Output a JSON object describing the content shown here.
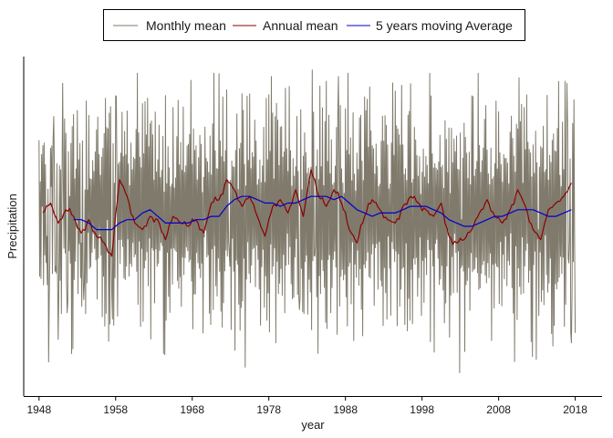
{
  "chart_data": {
    "type": "line",
    "title": "",
    "xlabel": "year",
    "ylabel": "Precipitation",
    "xlim": [
      1946,
      2021.5
    ],
    "ylim": [
      -0.02,
      1.0
    ],
    "x_ticks": [
      1948,
      1958,
      1968,
      1978,
      1988,
      1998,
      2008,
      2018
    ],
    "x_tick_labels": [
      "1948",
      "1958",
      "1968",
      "1978",
      "1988",
      "1998",
      "2008",
      "2018"
    ],
    "y_ticks_shown": false,
    "grid": false,
    "legend_position": "top-center",
    "x_range": [
      1948,
      2018
    ],
    "series": [
      {
        "name": "Monthly mean",
        "color": "#7f7a6b",
        "key_points_note": "",
        "x": [
          1948.1,
          1948.4,
          1948.7,
          1949.0,
          1949.3,
          1949.6,
          1949.9,
          1950.2,
          1950.5,
          1950.8,
          1951.1,
          1951.4,
          1951.7,
          1952.0,
          1952.3,
          1952.6,
          1952.9,
          1953.2,
          1953.5,
          1953.8,
          1956.6,
          1956.9,
          1957.2,
          1957.5,
          1957.8,
          1958.1,
          1958.4,
          1958.7,
          1972.5,
          1972.8,
          1973.1,
          1978.3,
          1978.6,
          1978.9,
          1981.7,
          1982.0,
          1982.3,
          1983.7,
          1984.0,
          1984.3,
          1987.1,
          1987.4,
          1987.7,
          2002.9,
          2003.2,
          2003.5,
          2012.9,
          2013.2,
          2013.5,
          2016.9,
          2017.2,
          2017.5,
          2017.8,
          2018.0
        ],
        "y": [
          0.34,
          0.55,
          0.74,
          0.46,
          0.28,
          0.61,
          0.82,
          0.37,
          0.15,
          0.66,
          0.92,
          0.41,
          0.23,
          0.58,
          0.79,
          0.33,
          0.51,
          0.69,
          0.44,
          0.27,
          0.19,
          0.51,
          0.83,
          0.28,
          0.62,
          0.88,
          0.45,
          0.71,
          0.9,
          0.41,
          0.18,
          0.94,
          0.37,
          0.14,
          0.82,
          0.24,
          0.6,
          0.96,
          0.4,
          0.72,
          0.94,
          0.34,
          0.62,
          0.05,
          0.51,
          0.8,
          0.09,
          0.48,
          0.73,
          0.92,
          0.38,
          0.14,
          0.87,
          0.17
        ]
      },
      {
        "name": "Annual mean",
        "color": "#8b0000",
        "x": [
          1948.5,
          1949.5,
          1950.5,
          1951.5,
          1952.5,
          1953.5,
          1954.5,
          1955.5,
          1956.5,
          1957.5,
          1958.5,
          1959.5,
          1960.5,
          1961.5,
          1962.5,
          1963.5,
          1964.5,
          1965.5,
          1966.5,
          1967.5,
          1968.5,
          1969.5,
          1970.5,
          1971.5,
          1972.5,
          1973.5,
          1974.5,
          1975.5,
          1976.5,
          1977.5,
          1978.5,
          1979.5,
          1980.5,
          1981.5,
          1982.5,
          1983.5,
          1984.5,
          1985.5,
          1986.5,
          1987.5,
          1988.5,
          1989.5,
          1990.5,
          1991.5,
          1992.5,
          1993.5,
          1994.5,
          1995.5,
          1996.5,
          1997.5,
          1998.5,
          1999.5,
          2000.5,
          2001.5,
          2002.5,
          2003.5,
          2004.5,
          2005.5,
          2006.5,
          2007.5,
          2008.5,
          2009.5,
          2010.5,
          2011.5,
          2012.5,
          2013.5,
          2014.5,
          2015.5,
          2016.5,
          2017.5
        ],
        "y": [
          0.53,
          0.56,
          0.5,
          0.54,
          0.52,
          0.47,
          0.51,
          0.46,
          0.44,
          0.4,
          0.63,
          0.58,
          0.5,
          0.48,
          0.52,
          0.51,
          0.45,
          0.52,
          0.5,
          0.49,
          0.51,
          0.47,
          0.56,
          0.57,
          0.63,
          0.6,
          0.55,
          0.58,
          0.52,
          0.46,
          0.55,
          0.57,
          0.53,
          0.6,
          0.52,
          0.66,
          0.58,
          0.55,
          0.6,
          0.56,
          0.48,
          0.44,
          0.52,
          0.57,
          0.54,
          0.51,
          0.5,
          0.55,
          0.58,
          0.56,
          0.54,
          0.52,
          0.56,
          0.46,
          0.44,
          0.45,
          0.48,
          0.53,
          0.57,
          0.52,
          0.5,
          0.54,
          0.6,
          0.55,
          0.48,
          0.45,
          0.54,
          0.56,
          0.58,
          0.62
        ]
      },
      {
        "name": "5 years moving Average",
        "color": "#0000cd",
        "x": [
          1952.5,
          1953.5,
          1954.5,
          1955.5,
          1956.5,
          1957.5,
          1958.5,
          1959.5,
          1960.5,
          1961.5,
          1962.5,
          1963.5,
          1964.5,
          1965.5,
          1966.5,
          1967.5,
          1968.5,
          1969.5,
          1970.5,
          1971.5,
          1972.5,
          1973.5,
          1974.5,
          1975.5,
          1976.5,
          1977.5,
          1978.5,
          1979.5,
          1980.5,
          1981.5,
          1982.5,
          1983.5,
          1984.5,
          1985.5,
          1986.5,
          1987.5,
          1988.5,
          1989.5,
          1990.5,
          1991.5,
          1992.5,
          1993.5,
          1994.5,
          1995.5,
          1996.5,
          1997.5,
          1998.5,
          1999.5,
          2000.5,
          2001.5,
          2002.5,
          2003.5,
          2004.5,
          2005.5,
          2006.5,
          2007.5,
          2008.5,
          2009.5,
          2010.5,
          2011.5,
          2012.5,
          2013.5,
          2014.5,
          2015.5,
          2016.5,
          2017.5
        ],
        "y": [
          0.51,
          0.51,
          0.5,
          0.48,
          0.48,
          0.48,
          0.5,
          0.51,
          0.51,
          0.53,
          0.54,
          0.52,
          0.5,
          0.5,
          0.5,
          0.5,
          0.51,
          0.51,
          0.52,
          0.52,
          0.55,
          0.57,
          0.58,
          0.58,
          0.57,
          0.56,
          0.56,
          0.55,
          0.56,
          0.56,
          0.57,
          0.58,
          0.58,
          0.58,
          0.57,
          0.58,
          0.56,
          0.54,
          0.53,
          0.52,
          0.53,
          0.53,
          0.53,
          0.54,
          0.55,
          0.55,
          0.55,
          0.54,
          0.53,
          0.51,
          0.5,
          0.49,
          0.49,
          0.5,
          0.51,
          0.52,
          0.52,
          0.53,
          0.54,
          0.54,
          0.54,
          0.53,
          0.52,
          0.52,
          0.53,
          0.54
        ]
      }
    ]
  }
}
